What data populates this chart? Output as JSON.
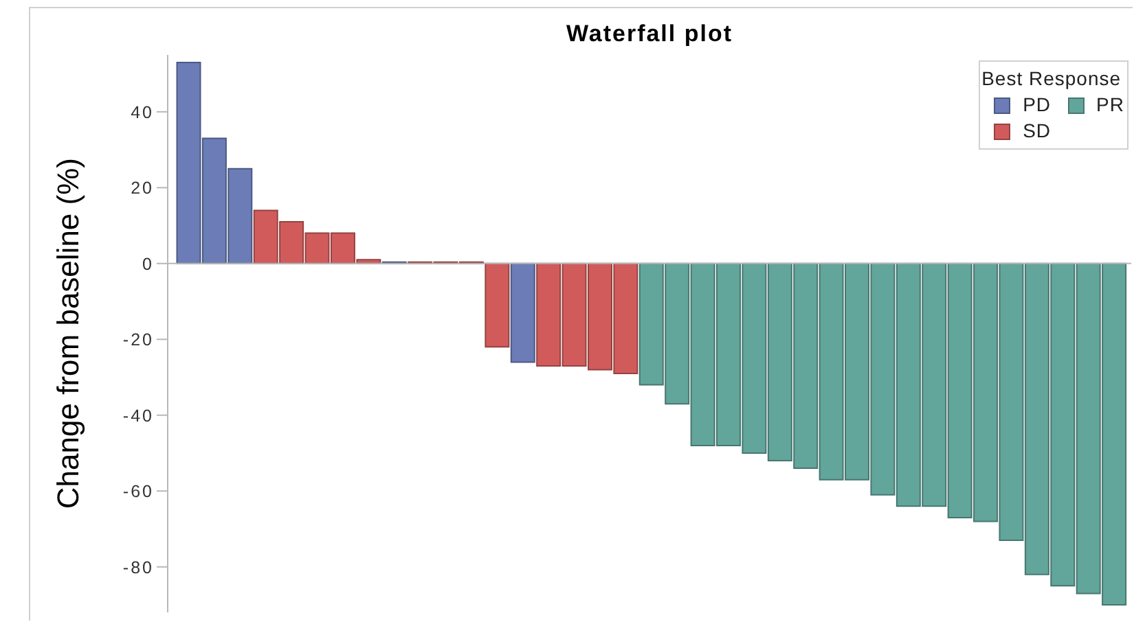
{
  "chart_data": {
    "type": "bar",
    "title": "Waterfall plot",
    "ylabel": "Change from baseline (%)",
    "legend_title": "Best Response",
    "categories": [
      null,
      null,
      null,
      null,
      null,
      null,
      null,
      null,
      null,
      null,
      null,
      null,
      null,
      null,
      null,
      null,
      null,
      null,
      null,
      null,
      null,
      null,
      null,
      null,
      null,
      null,
      null,
      null,
      null,
      null,
      null,
      null,
      null,
      null,
      null,
      null,
      null
    ],
    "series": [
      {
        "name": "PD",
        "color": "#6b7cb6",
        "values": [
          53,
          33,
          25,
          null,
          null,
          null,
          null,
          null,
          0,
          null,
          null,
          null,
          null,
          -26,
          null,
          null,
          null,
          null,
          null,
          null,
          null,
          null,
          null,
          null,
          null,
          null,
          null,
          null,
          null,
          null,
          null,
          null,
          null,
          null,
          null,
          null,
          null
        ]
      },
      {
        "name": "PR",
        "color": "#62a59b",
        "values": [
          null,
          null,
          null,
          null,
          null,
          null,
          null,
          null,
          null,
          null,
          null,
          null,
          null,
          null,
          null,
          null,
          null,
          null,
          -32,
          -37,
          -48,
          -48,
          -50,
          -52,
          -54,
          -57,
          -57,
          -61,
          -64,
          -64,
          -67,
          -68,
          -73,
          -82,
          -85,
          -87,
          -90
        ]
      },
      {
        "name": "SD",
        "color": "#d15b5b",
        "values": [
          null,
          null,
          null,
          14,
          11,
          8,
          8,
          1,
          null,
          0,
          0,
          0,
          -22,
          null,
          -27,
          -27,
          -28,
          -29,
          null,
          null,
          null,
          null,
          null,
          null,
          null,
          null,
          null,
          null,
          null,
          null,
          null,
          null,
          null,
          null,
          null,
          null,
          null
        ]
      }
    ],
    "stacked": true,
    "ylim": [
      -92,
      55
    ],
    "yticks": [
      -80,
      -60,
      -40,
      -20,
      0,
      20,
      40
    ],
    "ref_lines": [
      {
        "axis": "y",
        "value": 0
      }
    ],
    "legend": "top right"
  }
}
